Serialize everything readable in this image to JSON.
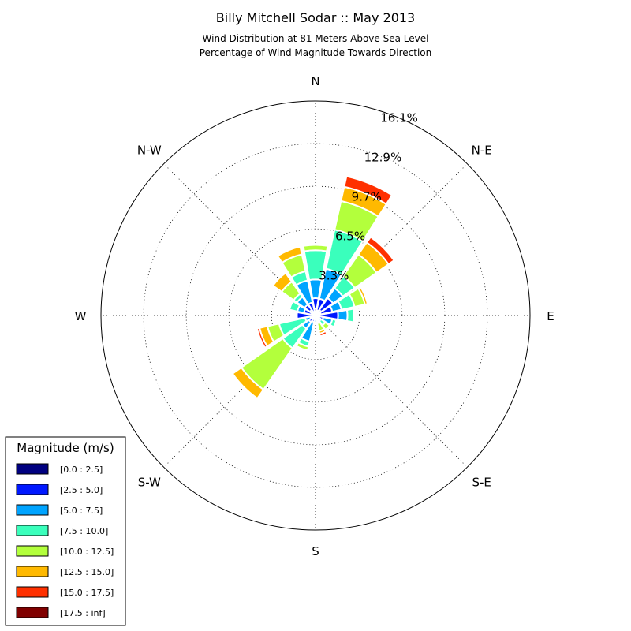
{
  "chart_data": {
    "type": "windrose",
    "title": "Billy Mitchell Sodar :: May 2013",
    "subtitle_lines": [
      "Wind Distribution at 81 Meters Above Sea Level",
      "Percentage of Wind Magnitude Towards Direction"
    ],
    "directions": [
      "N",
      "N-E",
      "E",
      "S-E",
      "S",
      "S-W",
      "W",
      "N-W"
    ],
    "radial_ticks": [
      "3.3%",
      "6.5%",
      "9.7%",
      "12.9%",
      "16.1%"
    ],
    "radial_tick_values": [
      3.3,
      6.5,
      9.7,
      12.9,
      16.1
    ],
    "rmax": 16.1,
    "grid": true,
    "legend": {
      "title": "Magnitude (m/s)",
      "position": "lower-left",
      "bins": [
        "[0.0 : 2.5]",
        "[2.5 : 5.0]",
        "[5.0 : 7.5]",
        "[7.5 : 10.0]",
        "[10.0 : 12.5]",
        "[12.5 : 15.0]",
        "[15.0 : 17.5]",
        "[17.5 : inf]"
      ],
      "colors": [
        "#000080",
        "#0018ff",
        "#00a4ff",
        "#3affbc",
        "#b3ff3c",
        "#ffb900",
        "#ff3000",
        "#800000"
      ]
    },
    "sector_width_deg": 22.5,
    "sectors": [
      {
        "angle": 0,
        "cumulative": [
          0.5,
          1.3,
          2.7,
          4.9,
          5.3,
          5.3,
          5.3,
          5.3
        ]
      },
      {
        "angle": 22.5,
        "cumulative": [
          0.4,
          1.3,
          3.6,
          6.6,
          8.8,
          9.9,
          10.7,
          10.7
        ]
      },
      {
        "angle": 45,
        "cumulative": [
          0.5,
          1.6,
          2.5,
          3.6,
          5.6,
          6.7,
          7.2,
          7.2
        ]
      },
      {
        "angle": 67.5,
        "cumulative": [
          0.4,
          1.3,
          2.0,
          3.0,
          3.8,
          4.0,
          4.0,
          4.0
        ]
      },
      {
        "angle": 90,
        "cumulative": [
          0.3,
          1.7,
          2.4,
          2.9,
          2.9,
          2.9,
          2.9,
          2.9
        ]
      },
      {
        "angle": 112.5,
        "cumulative": [
          0.3,
          0.6,
          1.3,
          1.6,
          1.6,
          1.6,
          1.6,
          1.6
        ]
      },
      {
        "angle": 135,
        "cumulative": [
          0.2,
          0.3,
          0.5,
          0.9,
          1.3,
          1.4,
          1.4,
          1.4
        ]
      },
      {
        "angle": 157.5,
        "cumulative": [
          0.2,
          0.4,
          0.5,
          0.6,
          1.2,
          1.4,
          1.6,
          1.6
        ]
      },
      {
        "angle": 180,
        "cumulative": [
          0.2,
          0.3,
          0.5,
          0.5,
          0.5,
          0.5,
          0.5,
          0.5
        ]
      },
      {
        "angle": 202.5,
        "cumulative": [
          0.2,
          0.5,
          2.0,
          2.4,
          2.7,
          2.8,
          2.8,
          2.8
        ]
      },
      {
        "angle": 225,
        "cumulative": [
          0.3,
          0.6,
          1.2,
          3.0,
          6.8,
          7.6,
          7.6,
          7.6
        ]
      },
      {
        "angle": 247.5,
        "cumulative": [
          0.2,
          0.4,
          0.8,
          2.8,
          3.7,
          4.3,
          4.5,
          4.5
        ]
      },
      {
        "angle": 270,
        "cumulative": [
          0.2,
          1.4,
          1.5,
          1.5,
          1.5,
          1.5,
          1.5,
          1.5
        ]
      },
      {
        "angle": 292.5,
        "cumulative": [
          0.3,
          0.9,
          1.4,
          2.0,
          2.0,
          2.0,
          2.0,
          2.0
        ]
      },
      {
        "angle": 315,
        "cumulative": [
          0.5,
          1.0,
          1.7,
          2.0,
          3.1,
          3.9,
          3.9,
          3.9
        ]
      },
      {
        "angle": 337.5,
        "cumulative": [
          0.3,
          1.0,
          2.7,
          3.4,
          4.7,
          5.3,
          5.3,
          5.3
        ]
      }
    ]
  }
}
